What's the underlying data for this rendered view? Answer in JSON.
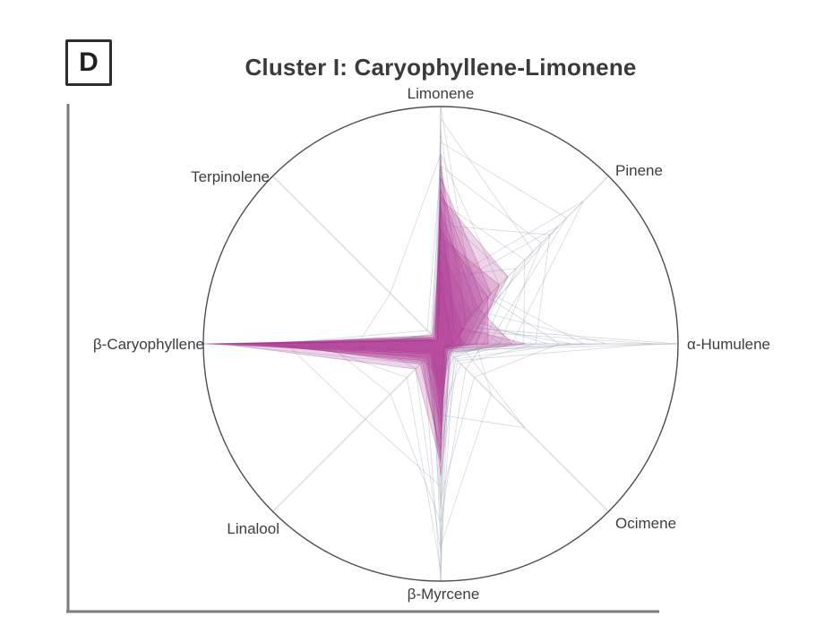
{
  "panel_label": "D",
  "chart_data": {
    "type": "radar",
    "title": "Cluster I: Caryophyllene-Limonene",
    "axes": [
      "Limonene",
      "Pinene",
      "α-Humulene",
      "Ocimene",
      "β-Myrcene",
      "Linalool",
      "β-Caryophyllene",
      "Terpinolene"
    ],
    "rlim": [
      0,
      1
    ],
    "grid": "outer-circle-only",
    "legend": "none",
    "colors": {
      "highlight_fill": "#b94c9d",
      "highlight_stroke": "#a03287",
      "background_stroke": "#96a2b4",
      "circle_stroke": "#4d4d4d",
      "spoke_stroke": "#cfcfcf",
      "frame_stroke": "#7d7d7d"
    },
    "highlight_samples": [
      [
        0.8,
        0.08,
        0.05,
        0.02,
        0.3,
        0.06,
        0.95,
        0.02
      ],
      [
        0.75,
        0.15,
        0.08,
        0.03,
        0.25,
        0.05,
        1.0,
        0.03
      ],
      [
        0.7,
        0.3,
        0.1,
        0.02,
        0.2,
        0.08,
        0.9,
        0.02
      ],
      [
        0.62,
        0.4,
        0.12,
        0.04,
        0.35,
        0.05,
        0.85,
        0.04
      ],
      [
        0.55,
        0.22,
        0.3,
        0.03,
        0.15,
        0.1,
        0.8,
        0.02
      ],
      [
        0.5,
        0.1,
        0.36,
        0.05,
        0.28,
        0.04,
        0.75,
        0.03
      ],
      [
        0.45,
        0.35,
        0.15,
        0.02,
        0.45,
        0.12,
        0.7,
        0.05
      ],
      [
        0.4,
        0.18,
        0.06,
        0.06,
        0.56,
        0.08,
        0.88,
        0.02
      ],
      [
        0.35,
        0.05,
        0.04,
        0.02,
        0.5,
        0.15,
        0.92,
        0.03
      ],
      [
        0.3,
        0.12,
        0.08,
        0.03,
        0.4,
        0.06,
        0.98,
        0.02
      ],
      [
        0.65,
        0.25,
        0.05,
        0.02,
        0.18,
        0.04,
        0.6,
        0.03
      ],
      [
        0.58,
        0.08,
        0.1,
        0.04,
        0.33,
        0.09,
        0.68,
        0.02
      ],
      [
        0.48,
        0.28,
        0.2,
        0.02,
        0.22,
        0.05,
        0.82,
        0.04
      ],
      [
        0.25,
        0.06,
        0.05,
        0.03,
        0.48,
        0.11,
        0.73,
        0.02
      ]
    ],
    "background_samples": [
      [
        1.0,
        0.2,
        0.05,
        0.02,
        0.1,
        0.03,
        0.3,
        0.02
      ],
      [
        0.95,
        0.55,
        0.1,
        0.05,
        0.2,
        0.05,
        0.25,
        0.03
      ],
      [
        0.9,
        0.15,
        0.45,
        0.03,
        0.35,
        0.08,
        0.5,
        0.02
      ],
      [
        0.85,
        0.75,
        0.2,
        0.08,
        0.15,
        0.04,
        0.4,
        0.05
      ],
      [
        0.3,
        0.1,
        1.0,
        0.04,
        0.25,
        0.06,
        0.45,
        0.02
      ],
      [
        0.2,
        0.08,
        0.9,
        0.1,
        0.55,
        0.03,
        0.35,
        0.04
      ],
      [
        0.45,
        0.3,
        0.6,
        0.05,
        1.0,
        0.1,
        0.3,
        0.02
      ],
      [
        0.15,
        0.05,
        0.1,
        0.03,
        0.95,
        0.2,
        0.55,
        0.03
      ],
      [
        0.55,
        0.4,
        0.15,
        0.3,
        0.85,
        0.05,
        0.2,
        0.02
      ],
      [
        0.25,
        0.85,
        0.3,
        0.06,
        0.4,
        0.08,
        0.6,
        0.04
      ],
      [
        0.7,
        0.25,
        0.08,
        0.5,
        0.3,
        0.04,
        0.15,
        0.03
      ],
      [
        0.35,
        0.15,
        0.25,
        0.07,
        0.6,
        0.45,
        0.65,
        0.02
      ],
      [
        0.6,
        0.5,
        0.35,
        0.04,
        0.2,
        0.06,
        0.85,
        0.05
      ],
      [
        0.4,
        0.12,
        0.55,
        0.09,
        0.45,
        0.12,
        0.95,
        0.03
      ],
      [
        0.8,
        0.35,
        0.12,
        0.05,
        0.7,
        0.07,
        0.35,
        0.3
      ],
      [
        0.5,
        0.65,
        0.4,
        0.12,
        0.3,
        0.05,
        0.55,
        0.02
      ],
      [
        0.65,
        0.2,
        0.7,
        0.03,
        0.5,
        0.09,
        0.25,
        0.06
      ],
      [
        0.28,
        0.45,
        0.18,
        0.15,
        0.75,
        0.3,
        0.48,
        0.03
      ],
      [
        0.75,
        0.6,
        0.25,
        0.06,
        0.12,
        0.04,
        0.7,
        0.08
      ],
      [
        0.38,
        0.28,
        0.5,
        0.2,
        0.65,
        0.06,
        0.42,
        0.04
      ],
      [
        0.58,
        0.18,
        0.32,
        0.08,
        0.88,
        0.15,
        0.28,
        0.02
      ],
      [
        0.22,
        0.7,
        0.08,
        0.04,
        0.35,
        0.1,
        0.78,
        0.05
      ]
    ]
  }
}
